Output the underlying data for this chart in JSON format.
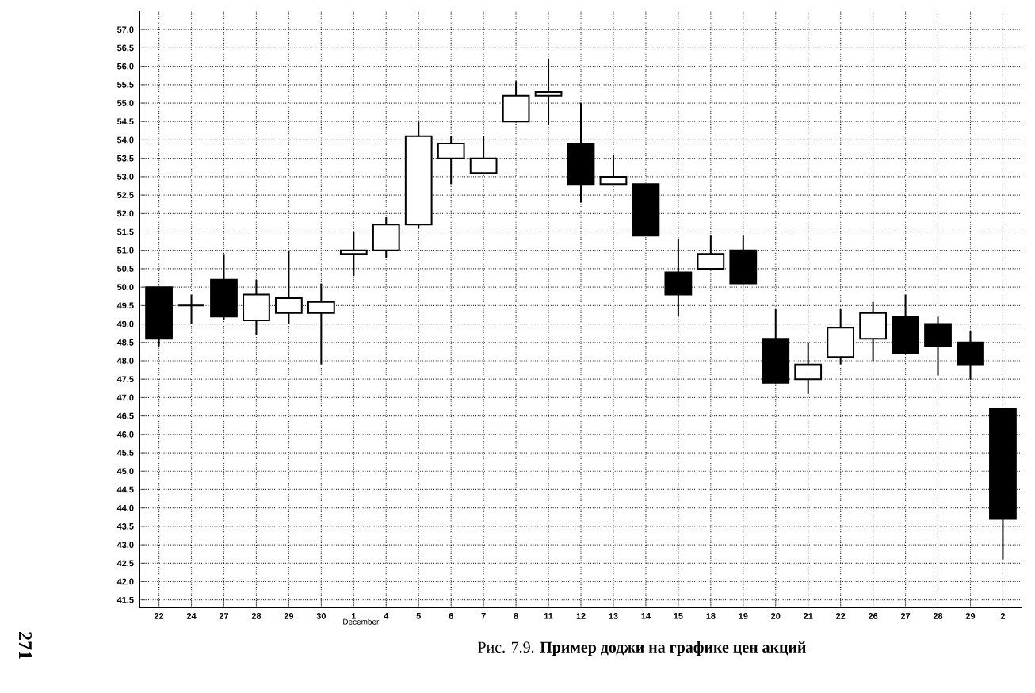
{
  "chart_data": {
    "type": "candlestick",
    "categories": [
      "22",
      "24",
      "27",
      "28",
      "29",
      "30",
      "1",
      "4",
      "5",
      "6",
      "7",
      "8",
      "11",
      "12",
      "13",
      "14",
      "15",
      "18",
      "19",
      "20",
      "21",
      "22",
      "26",
      "27",
      "28",
      "29",
      "2"
    ],
    "ohlc": [
      [
        50.0,
        50.0,
        48.4,
        48.6
      ],
      [
        49.5,
        49.8,
        49.0,
        49.5
      ],
      [
        50.2,
        50.9,
        49.1,
        49.2
      ],
      [
        49.1,
        50.2,
        48.7,
        49.8
      ],
      [
        49.3,
        51.0,
        49.0,
        49.7
      ],
      [
        49.3,
        50.1,
        47.9,
        49.6
      ],
      [
        50.9,
        51.5,
        50.3,
        51.0
      ],
      [
        51.0,
        51.9,
        50.8,
        51.7
      ],
      [
        51.7,
        54.5,
        51.6,
        54.1
      ],
      [
        53.5,
        54.1,
        52.8,
        53.9
      ],
      [
        53.1,
        54.1,
        53.1,
        53.5
      ],
      [
        54.5,
        55.6,
        54.5,
        55.2
      ],
      [
        55.2,
        56.2,
        54.4,
        55.3
      ],
      [
        53.9,
        55.0,
        52.3,
        52.8
      ],
      [
        52.8,
        53.6,
        52.8,
        53.0
      ],
      [
        52.8,
        52.8,
        51.4,
        51.4
      ],
      [
        50.4,
        51.3,
        49.2,
        49.8
      ],
      [
        50.5,
        51.4,
        50.5,
        50.9
      ],
      [
        51.0,
        51.4,
        50.1,
        50.1
      ],
      [
        48.6,
        49.4,
        47.4,
        47.4
      ],
      [
        47.5,
        48.5,
        47.1,
        47.9
      ],
      [
        48.1,
        49.4,
        47.9,
        48.9
      ],
      [
        48.6,
        49.6,
        48.0,
        49.3
      ],
      [
        49.2,
        49.8,
        48.2,
        48.2
      ],
      [
        49.0,
        49.2,
        47.6,
        48.4
      ],
      [
        48.5,
        48.8,
        47.5,
        47.9
      ],
      [
        46.7,
        46.7,
        42.6,
        43.7
      ]
    ],
    "ylim": [
      41.3,
      57.5
    ],
    "yticks": [
      {
        "value": 41.5,
        "label": "41.5"
      },
      {
        "value": 42,
        "label": "42.0"
      },
      {
        "value": 42.5,
        "label": "42.5"
      },
      {
        "value": 43,
        "label": "43.0"
      },
      {
        "value": 43.5,
        "label": "43.5"
      },
      {
        "value": 44,
        "label": "44.0"
      },
      {
        "value": 44.5,
        "label": "44.5"
      },
      {
        "value": 45,
        "label": "45.0"
      },
      {
        "value": 45.5,
        "label": "45.5"
      },
      {
        "value": 46,
        "label": "46.0"
      },
      {
        "value": 46.5,
        "label": "46.5"
      },
      {
        "value": 47,
        "label": "47.0"
      },
      {
        "value": 47.5,
        "label": "47.5"
      },
      {
        "value": 48,
        "label": "48.0"
      },
      {
        "value": 48.5,
        "label": "48.5"
      },
      {
        "value": 49,
        "label": "49.0"
      },
      {
        "value": 49.5,
        "label": "49.5"
      },
      {
        "value": 50,
        "label": "50.0"
      },
      {
        "value": 50.5,
        "label": "50.5"
      },
      {
        "value": 51,
        "label": "51.0"
      },
      {
        "value": 51.5,
        "label": "51.5"
      },
      {
        "value": 52,
        "label": "52.0"
      },
      {
        "value": 52.5,
        "label": "52.5"
      },
      {
        "value": 53,
        "label": "53.0"
      },
      {
        "value": 53.5,
        "label": "53.5"
      },
      {
        "value": 54,
        "label": "54.0"
      },
      {
        "value": 54.5,
        "label": "54.5"
      },
      {
        "value": 55,
        "label": "55.0"
      },
      {
        "value": 55.5,
        "label": "55.5"
      },
      {
        "value": 56,
        "label": "56.0"
      },
      {
        "value": 56.5,
        "label": "56.5"
      },
      {
        "value": 57,
        "label": "57.0"
      }
    ],
    "grid": true,
    "annotations": [
      "Рис. 7.9. **Пример доджи на графике цен акций**",
      "271",
      "December"
    ]
  }
}
